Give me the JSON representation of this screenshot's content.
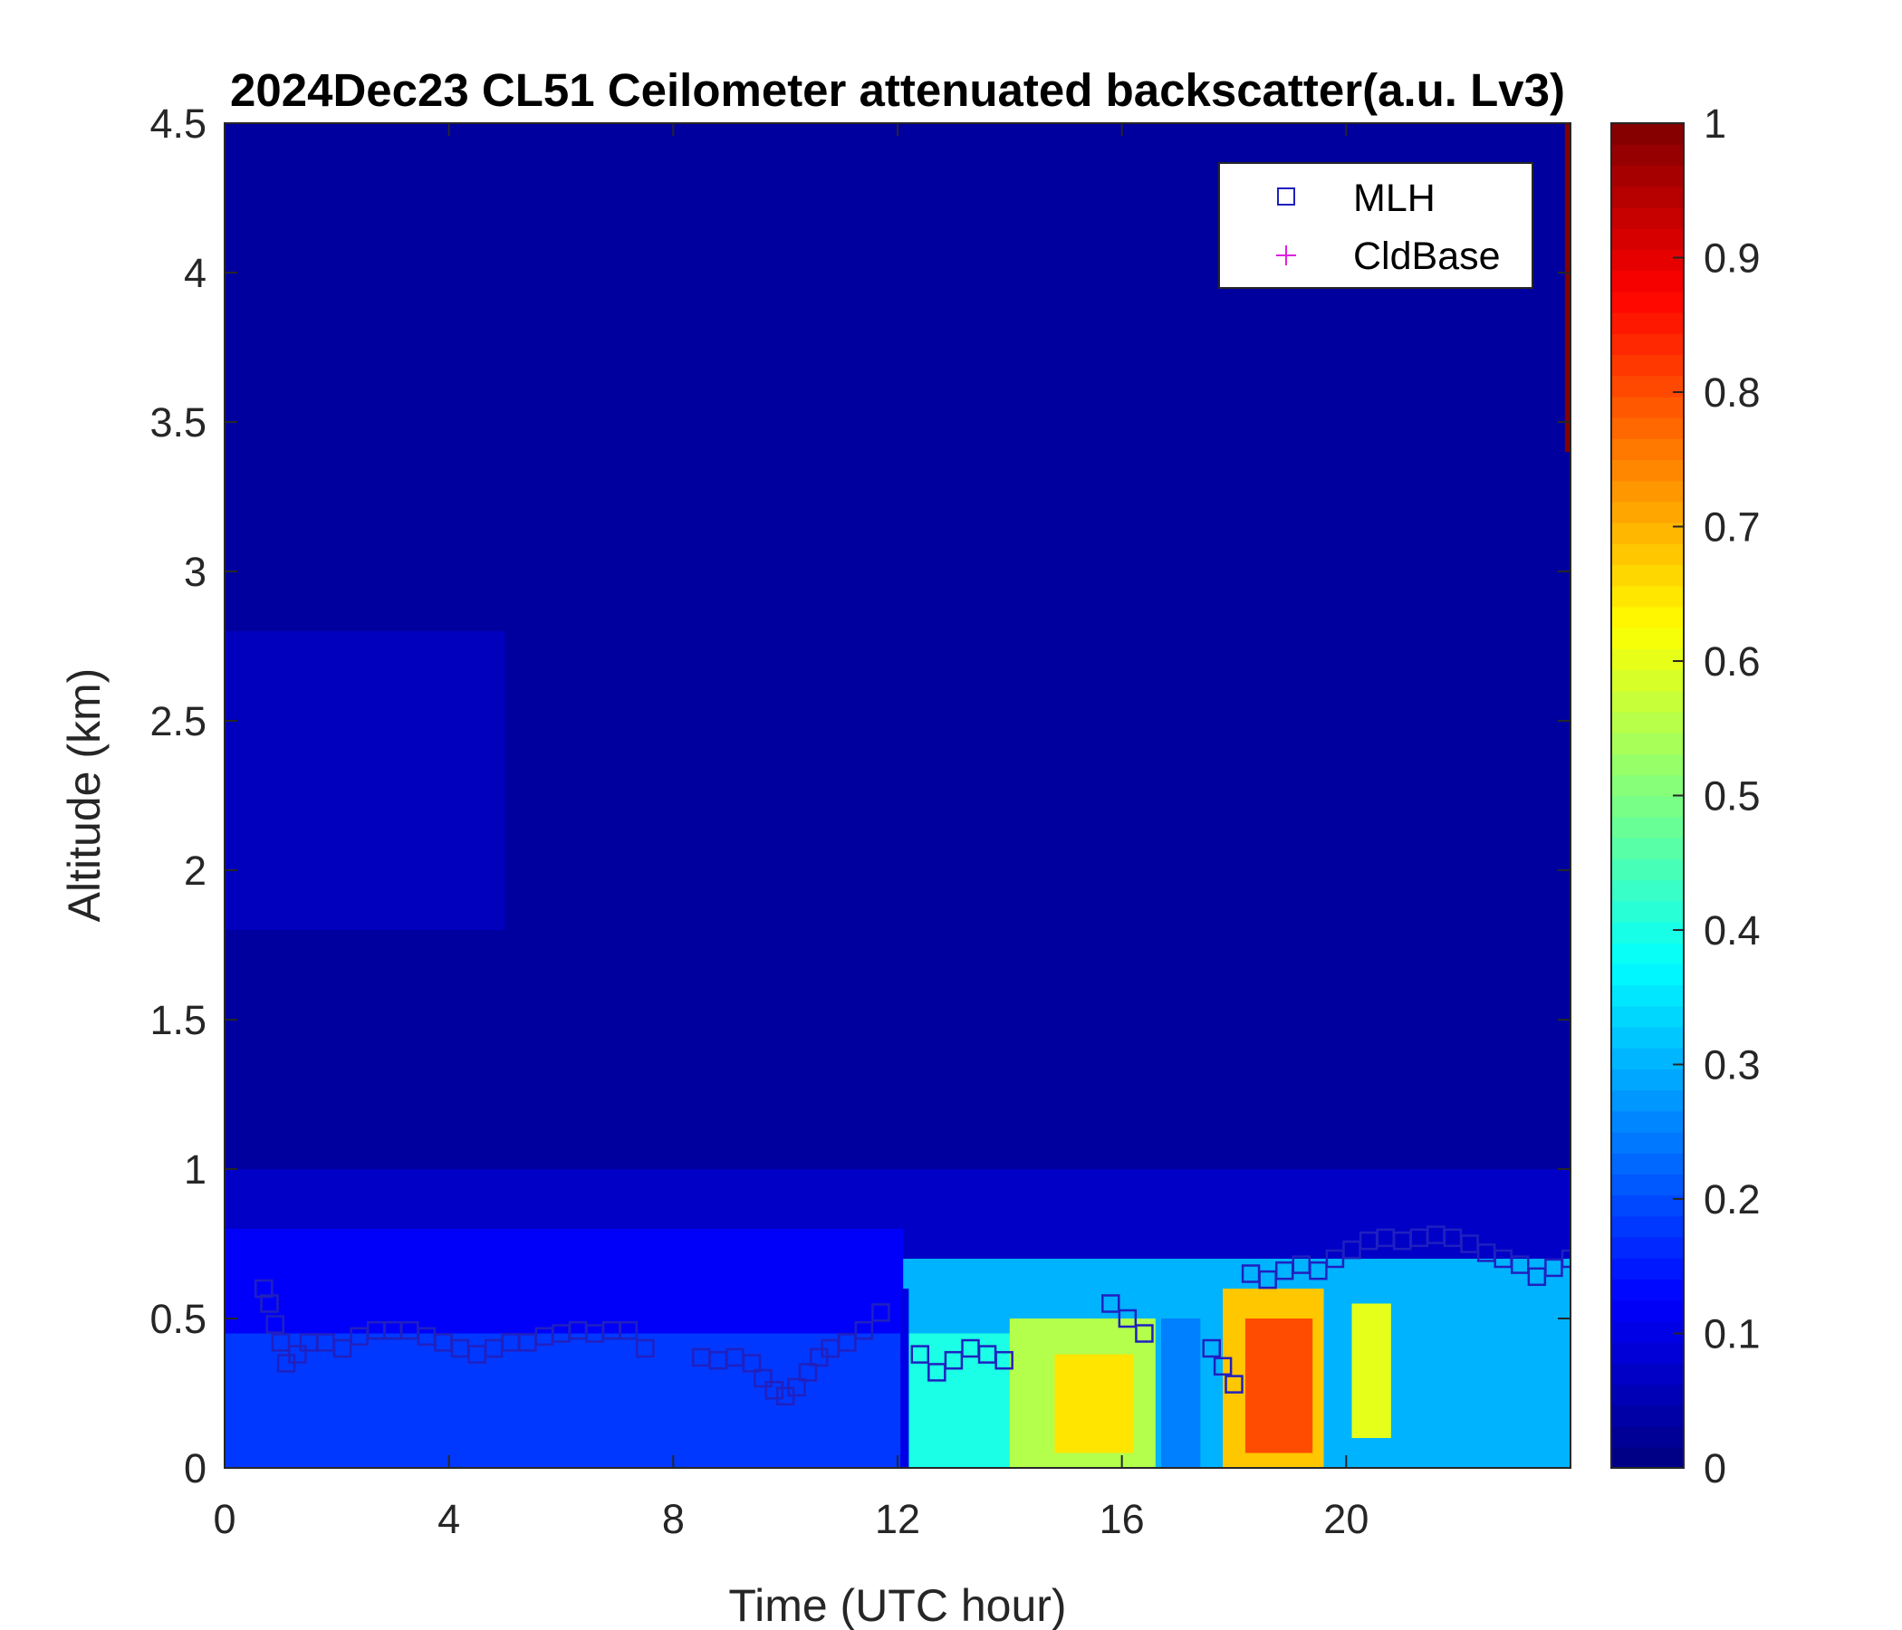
{
  "chart_data": {
    "type": "heatmap",
    "title": "2024Dec23 CL51 Ceilometer attenuated backscatter(a.u. Lv3)",
    "xlabel": "Time (UTC hour)",
    "ylabel": "Altitude (km)",
    "xlim": [
      0,
      24
    ],
    "ylim": [
      0,
      4.5
    ],
    "x_ticks": [
      "0",
      "4",
      "8",
      "12",
      "16",
      "20"
    ],
    "x_tick_values": [
      0,
      4,
      8,
      12,
      16,
      20
    ],
    "y_ticks": [
      "0",
      "0.5",
      "1",
      "1.5",
      "2",
      "2.5",
      "3",
      "3.5",
      "4",
      "4.5"
    ],
    "y_tick_values": [
      0,
      0.5,
      1,
      1.5,
      2,
      2.5,
      3,
      3.5,
      4,
      4.5
    ],
    "colorbar": {
      "colormap": "jet",
      "clim": [
        0,
        1
      ],
      "ticks": [
        "0",
        "0.1",
        "0.2",
        "0.3",
        "0.4",
        "0.5",
        "0.6",
        "0.7",
        "0.8",
        "0.9",
        "1"
      ],
      "tick_values": [
        0,
        0.1,
        0.2,
        0.3,
        0.4,
        0.5,
        0.6,
        0.7,
        0.8,
        0.9,
        1
      ]
    },
    "grid": false,
    "legend_position": "top-right",
    "legend": [
      {
        "label": "MLH",
        "marker": "square",
        "color": "#2020c0"
      },
      {
        "label": "CldBase",
        "marker": "plus",
        "color": "#e020e0"
      }
    ],
    "background_value": 0.02,
    "regions": [
      {
        "t0": 0,
        "t1": 24,
        "h0": 0.8,
        "h1": 4.5,
        "value": 0.03
      },
      {
        "t0": 0,
        "t1": 5,
        "h0": 1.8,
        "h1": 2.8,
        "value": 0.06
      },
      {
        "t0": 0,
        "t1": 24,
        "h0": 0.65,
        "h1": 1.0,
        "value": 0.07
      },
      {
        "t0": 0,
        "t1": 12.1,
        "h0": 0,
        "h1": 0.8,
        "value": 0.12
      },
      {
        "t0": 0,
        "t1": 12.1,
        "h0": 0,
        "h1": 0.45,
        "value": 0.18
      },
      {
        "t0": 12.1,
        "t1": 24,
        "h0": 0,
        "h1": 0.7,
        "value": 0.3
      },
      {
        "t0": 12.2,
        "t1": 14.5,
        "h0": 0,
        "h1": 0.45,
        "value": 0.4
      },
      {
        "t0": 14.0,
        "t1": 16.6,
        "h0": 0,
        "h1": 0.5,
        "value": 0.55
      },
      {
        "t0": 14.8,
        "t1": 16.2,
        "h0": 0.05,
        "h1": 0.38,
        "value": 0.65
      },
      {
        "t0": 17.8,
        "t1": 19.6,
        "h0": 0,
        "h1": 0.6,
        "value": 0.68
      },
      {
        "t0": 18.2,
        "t1": 19.4,
        "h0": 0.05,
        "h1": 0.5,
        "value": 0.8
      },
      {
        "t0": 20.1,
        "t1": 20.8,
        "h0": 0.1,
        "h1": 0.55,
        "value": 0.6
      },
      {
        "t0": 12.05,
        "t1": 12.2,
        "h0": 0,
        "h1": 0.6,
        "value": 0.1
      },
      {
        "t0": 16.7,
        "t1": 17.4,
        "h0": 0,
        "h1": 0.5,
        "value": 0.25
      },
      {
        "t0": 23.9,
        "t1": 24,
        "h0": 3.4,
        "h1": 4.5,
        "value": 1.0
      }
    ],
    "series": [
      {
        "name": "MLH",
        "marker": "square",
        "x": [
          0.7,
          0.8,
          0.9,
          1.0,
          1.1,
          1.3,
          1.5,
          1.8,
          2.1,
          2.4,
          2.7,
          3.0,
          3.3,
          3.6,
          3.9,
          4.2,
          4.5,
          4.8,
          5.1,
          5.4,
          5.7,
          6.0,
          6.3,
          6.6,
          6.9,
          7.2,
          7.5,
          8.5,
          8.8,
          9.1,
          9.4,
          9.6,
          9.8,
          10.0,
          10.2,
          10.4,
          10.6,
          10.8,
          11.1,
          11.4,
          11.7,
          12.4,
          12.7,
          13.0,
          13.3,
          13.6,
          13.9,
          15.8,
          16.1,
          16.4,
          17.6,
          17.8,
          18.0,
          18.3,
          18.6,
          18.9,
          19.2,
          19.5,
          19.8,
          20.1,
          20.4,
          20.7,
          21.0,
          21.3,
          21.6,
          21.9,
          22.2,
          22.5,
          22.8,
          23.1,
          23.4,
          23.7,
          24.0
        ],
        "y": [
          0.6,
          0.55,
          0.48,
          0.42,
          0.35,
          0.38,
          0.42,
          0.42,
          0.4,
          0.44,
          0.46,
          0.46,
          0.46,
          0.44,
          0.42,
          0.4,
          0.38,
          0.4,
          0.42,
          0.42,
          0.44,
          0.45,
          0.46,
          0.45,
          0.46,
          0.46,
          0.4,
          0.37,
          0.36,
          0.37,
          0.35,
          0.3,
          0.26,
          0.24,
          0.27,
          0.32,
          0.37,
          0.4,
          0.42,
          0.46,
          0.52,
          0.38,
          0.32,
          0.36,
          0.4,
          0.38,
          0.36,
          0.55,
          0.5,
          0.45,
          0.4,
          0.34,
          0.28,
          0.65,
          0.63,
          0.66,
          0.68,
          0.66,
          0.7,
          0.73,
          0.76,
          0.77,
          0.76,
          0.77,
          0.78,
          0.77,
          0.75,
          0.72,
          0.7,
          0.68,
          0.64,
          0.67,
          0.7
        ]
      },
      {
        "name": "CldBase",
        "marker": "plus",
        "x": [],
        "y": []
      }
    ]
  }
}
